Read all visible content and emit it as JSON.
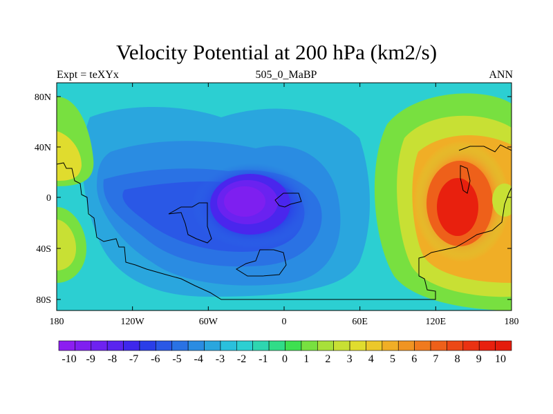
{
  "header": {
    "title": "Velocity Potential at 200 hPa (km2/s)",
    "left_label": "Expt = teXYx",
    "center_label": "505_0_MaBP",
    "right_label": "ANN"
  },
  "axes": {
    "x_ticks": [
      "180",
      "120W",
      "60W",
      "0",
      "60E",
      "120E",
      "180"
    ],
    "y_ticks": [
      "80N",
      "40N",
      "0",
      "40S",
      "80S"
    ]
  },
  "colorbar": {
    "labels": [
      "-10",
      "-9",
      "-8",
      "-7",
      "-6",
      "-5",
      "-4",
      "-3",
      "-2",
      "-1",
      "0",
      "1",
      "2",
      "3",
      "4",
      "5",
      "6",
      "7",
      "8",
      "9",
      "10"
    ],
    "colors": [
      "#8c1ef0",
      "#7f1ff0",
      "#6e22f0",
      "#5a24ef",
      "#3f27ec",
      "#2a3ee8",
      "#2a58e6",
      "#2a72e4",
      "#2a8ce2",
      "#2aa6de",
      "#2ac0dc",
      "#2ccfd2",
      "#2ed6b0",
      "#30dc88",
      "#3ee050",
      "#78e040",
      "#a8e03a",
      "#c8e034",
      "#e0dc2e",
      "#ecc82a",
      "#f0ae26",
      "#f09422",
      "#f07a1e",
      "#ee601a",
      "#ec4816",
      "#ea3212",
      "#e8200e",
      "#e41c0c"
    ]
  }
}
